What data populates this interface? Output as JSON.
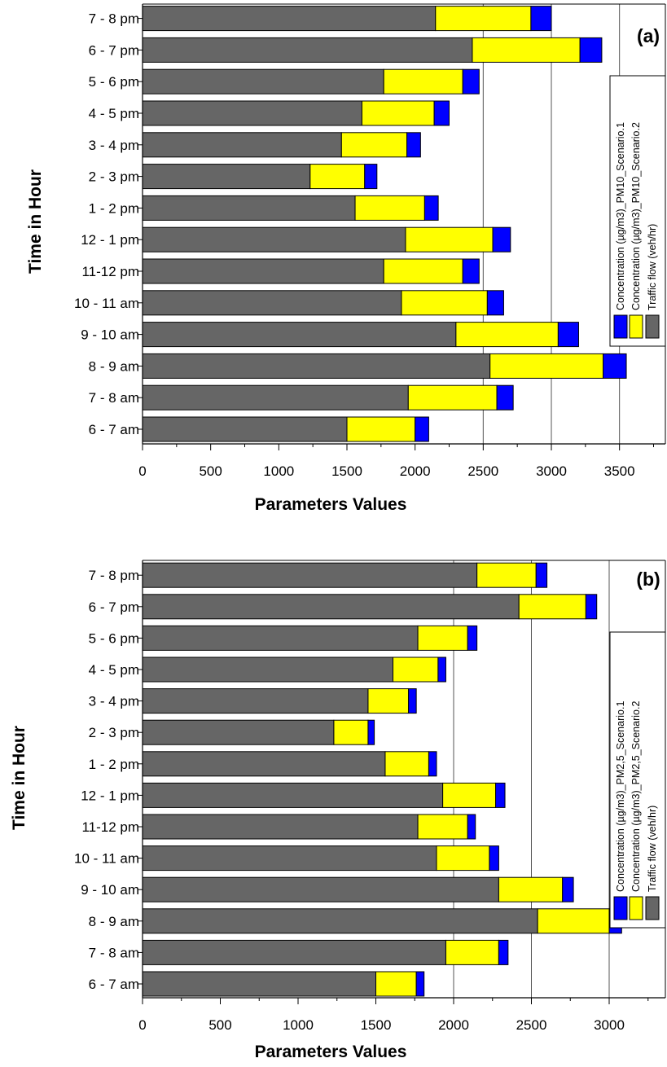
{
  "chart_data": [
    {
      "type": "bar",
      "orientation": "horizontal",
      "stacked": true,
      "panel_label": "(a)",
      "xlabel": "Parameters Values",
      "ylabel": "Time in Hour",
      "xlim": [
        0,
        3850
      ],
      "xticks": [
        0,
        500,
        1000,
        1500,
        2000,
        2500,
        3000,
        3500
      ],
      "grid": "vertical lines at 2500, 3000, 3500",
      "legend_position": "right, rotated",
      "categories": [
        "6 - 7 am",
        "7 - 8 am",
        "8 - 9 am",
        "9 - 10 am",
        "10 - 11 am",
        "11-12 pm",
        "12 - 1 pm",
        "1 - 2 pm",
        "2 - 3 pm",
        "3 - 4 pm",
        "4 - 5 pm",
        "5 - 6 pm",
        "6 - 7 pm",
        "7 - 8 pm"
      ],
      "series": [
        {
          "name": "Traffic flow (veh/hr)",
          "color": "#666666",
          "values": [
            1500,
            1950,
            2550,
            2300,
            1900,
            1770,
            1930,
            1560,
            1230,
            1460,
            1610,
            1770,
            2420,
            2150
          ]
        },
        {
          "name": "Concentration (µg/m3)_PM10_Scenario.2",
          "color": "#ffff00",
          "values": [
            500,
            650,
            830,
            750,
            630,
            580,
            640,
            510,
            400,
            480,
            530,
            580,
            790,
            700
          ]
        },
        {
          "name": "Concentration (µg/m3)_PM10_Scenario.1",
          "color": "#0000ff",
          "values": [
            100,
            120,
            170,
            150,
            120,
            120,
            130,
            100,
            90,
            100,
            110,
            120,
            160,
            150
          ]
        }
      ]
    },
    {
      "type": "bar",
      "orientation": "horizontal",
      "stacked": true,
      "panel_label": "(b)",
      "xlabel": "Parameters Values",
      "ylabel": "Time in Hour",
      "xlim": [
        0,
        3350
      ],
      "xticks": [
        0,
        500,
        1000,
        1500,
        2000,
        2500,
        3000
      ],
      "grid": "vertical lines at 2000, 2500, 3000",
      "legend_position": "right, rotated",
      "categories": [
        "6 - 7 am",
        "7 - 8 am",
        "8 - 9 am",
        "9 - 10 am",
        "10 - 11 am",
        "11-12 pm",
        "12 - 1 pm",
        "1 - 2 pm",
        "2 - 3 pm",
        "3 - 4 pm",
        "4 - 5 pm",
        "5 - 6 pm",
        "6 - 7 pm",
        "7 - 8 pm"
      ],
      "series": [
        {
          "name": "Traffic flow (veh/hr)",
          "color": "#666666",
          "values": [
            1500,
            1950,
            2540,
            2290,
            1890,
            1770,
            1930,
            1560,
            1230,
            1450,
            1610,
            1770,
            2420,
            2150
          ]
        },
        {
          "name": "Concentration (µg/m3)_PM2,5_Scenario.2",
          "color": "#ffff00",
          "values": [
            260,
            340,
            460,
            410,
            340,
            320,
            340,
            280,
            220,
            260,
            290,
            320,
            430,
            380
          ]
        },
        {
          "name": "Concentration (µg/m3)_PM2,5_Scenario.1",
          "color": "#0000ff",
          "values": [
            50,
            60,
            80,
            70,
            60,
            50,
            60,
            50,
            40,
            50,
            50,
            60,
            70,
            70
          ]
        }
      ]
    }
  ]
}
